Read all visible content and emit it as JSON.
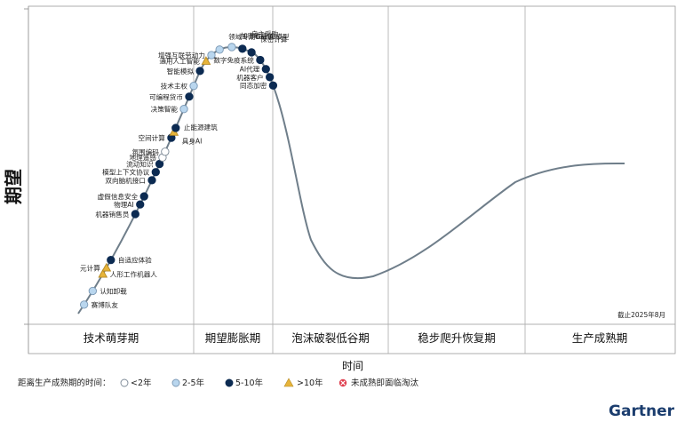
{
  "chart_data": {
    "type": "hype_cycle",
    "title": "",
    "ylabel": "期望",
    "xlabel": "时间",
    "as_of": "截止2025年8月",
    "phases": [
      "技术萌芽期",
      "期望膨胀期",
      "泡沫破裂低谷期",
      "稳步爬升恢复期",
      "生产成熟期"
    ],
    "legend": {
      "title": "距离生产成熟期的时间：",
      "items": [
        {
          "key": "lt2",
          "label": "<2年",
          "color": "#ffffff"
        },
        {
          "key": "2to5",
          "label": "2-5年",
          "color": "#b9d6ee"
        },
        {
          "key": "5to10",
          "label": "5-10年",
          "color": "#0c2b52"
        },
        {
          "key": "gt10",
          "label": ">10年",
          "color": "#e7b43a"
        },
        {
          "key": "obsolete",
          "label": "未成熟即面临淘汰",
          "color": "#e04050"
        }
      ]
    },
    "points": [
      {
        "name": "赛博队友",
        "t": 0.012,
        "cat": "2to5"
      },
      {
        "name": "认知卸载",
        "t": 0.03,
        "cat": "2to5"
      },
      {
        "name": "人形工作机器人",
        "t": 0.052,
        "cat": "gt10"
      },
      {
        "name": "元计算",
        "t": 0.06,
        "cat": "gt10"
      },
      {
        "name": "自适应体验",
        "t": 0.07,
        "cat": "5to10"
      },
      {
        "name": "机器销售员",
        "t": 0.128,
        "cat": "5to10"
      },
      {
        "name": "物理AI",
        "t": 0.14,
        "cat": "5to10"
      },
      {
        "name": "虚假信息安全",
        "t": 0.15,
        "cat": "5to10"
      },
      {
        "name": "双向脑机接口",
        "t": 0.17,
        "cat": "5to10"
      },
      {
        "name": "模型上下文协议",
        "t": 0.18,
        "cat": "5to10"
      },
      {
        "name": "流动知识",
        "t": 0.19,
        "cat": "5to10"
      },
      {
        "name": "地理遥感",
        "t": 0.198,
        "cat": "lt2"
      },
      {
        "name": "氛围编码",
        "t": 0.205,
        "cat": "lt2"
      },
      {
        "name": "空间计算",
        "t": 0.222,
        "cat": "5to10"
      },
      {
        "name": "具身AI",
        "t": 0.229,
        "cat": "gt10"
      },
      {
        "name": "止能源建筑",
        "t": 0.234,
        "cat": "5to10"
      },
      {
        "name": "决策智能",
        "t": 0.257,
        "cat": "2to5"
      },
      {
        "name": "可编程货币",
        "t": 0.272,
        "cat": "5to10"
      },
      {
        "name": "技术主权",
        "t": 0.285,
        "cat": "2to5"
      },
      {
        "name": "智能模拟",
        "t": 0.303,
        "cat": "5to10"
      },
      {
        "name": "通用人工智能",
        "t": 0.316,
        "cat": "gt10"
      },
      {
        "name": "增强互联劳动力",
        "t": 0.325,
        "cat": "2to5"
      },
      {
        "name": "领域专用GenAI模型",
        "t": 0.336,
        "cat": "2to5"
      },
      {
        "name": "加密敏捷性",
        "t": 0.35,
        "cat": "2to5"
      },
      {
        "name": "自主采购",
        "t": 0.362,
        "cat": "5to10"
      },
      {
        "name": "保密计算",
        "t": 0.373,
        "cat": "5to10"
      },
      {
        "name": "数字免疫系统",
        "t": 0.386,
        "cat": "5to10"
      },
      {
        "name": "AI代理",
        "t": 0.398,
        "cat": "5to10"
      },
      {
        "name": "机器客户",
        "t": 0.408,
        "cat": "5to10"
      },
      {
        "name": "同态加密",
        "t": 0.418,
        "cat": "5to10"
      }
    ]
  },
  "brand": "Gartner"
}
